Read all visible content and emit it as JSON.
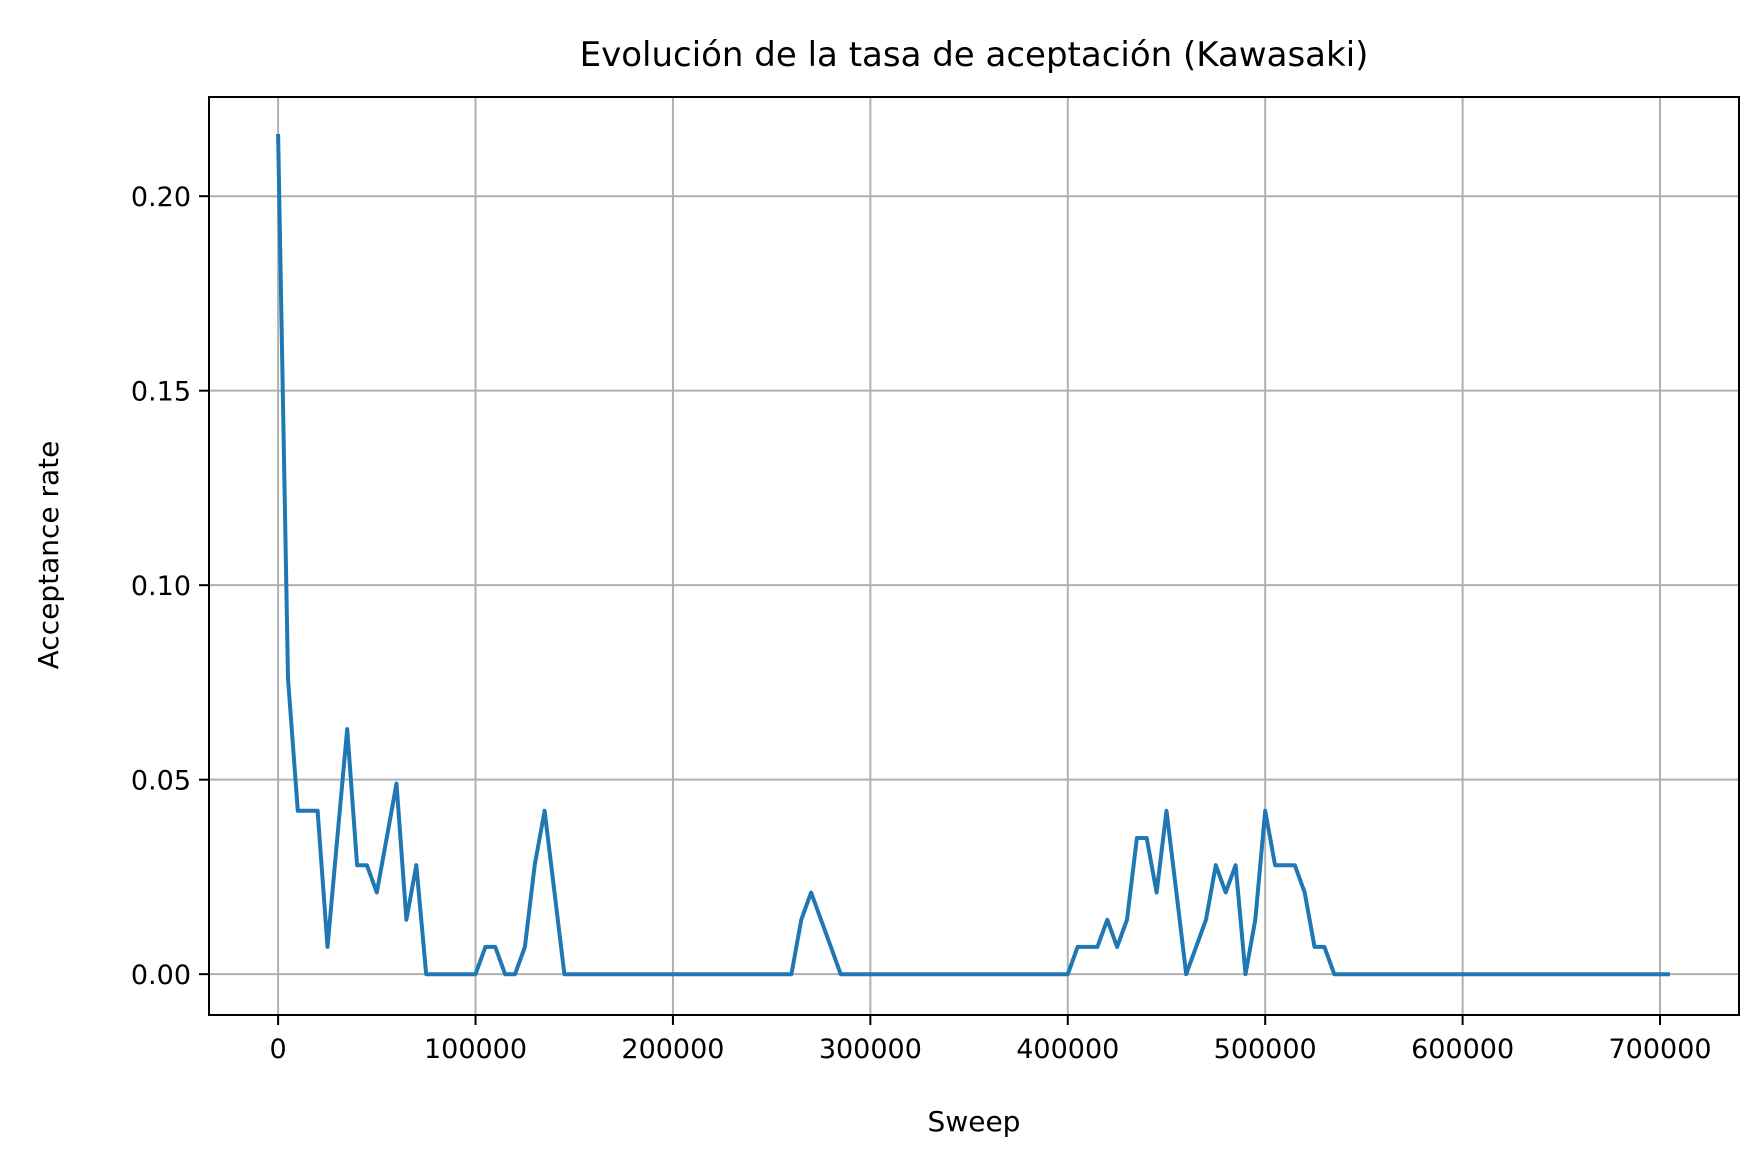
{
  "chart_data": {
    "type": "line",
    "title": "Evolución de la tasa de aceptación (Kawasaki)",
    "xlabel": "Sweep",
    "ylabel": "Acceptance rate",
    "xlim": [
      -35000,
      740000
    ],
    "ylim": [
      -0.0105,
      0.2255
    ],
    "xticks": [
      0,
      100000,
      200000,
      300000,
      400000,
      500000,
      600000,
      700000
    ],
    "xtick_labels": [
      "0",
      "100000",
      "200000",
      "300000",
      "400000",
      "500000",
      "600000",
      "700000"
    ],
    "yticks": [
      0.0,
      0.05,
      0.1,
      0.15,
      0.2
    ],
    "ytick_labels": [
      "0.00",
      "0.05",
      "0.10",
      "0.15",
      "0.20"
    ],
    "grid": true,
    "series": [
      {
        "color": "#1f77b4",
        "x": [
          0,
          5000,
          10000,
          15000,
          20000,
          25000,
          30000,
          35000,
          40000,
          45000,
          50000,
          55000,
          60000,
          65000,
          70000,
          75000,
          80000,
          85000,
          90000,
          95000,
          100000,
          105000,
          110000,
          115000,
          120000,
          125000,
          130000,
          135000,
          140000,
          145000,
          150000,
          260000,
          265000,
          270000,
          275000,
          280000,
          285000,
          290000,
          400000,
          405000,
          410000,
          415000,
          420000,
          425000,
          430000,
          435000,
          440000,
          445000,
          450000,
          455000,
          460000,
          465000,
          470000,
          475000,
          480000,
          485000,
          490000,
          495000,
          500000,
          505000,
          510000,
          515000,
          520000,
          525000,
          530000,
          535000,
          705000
        ],
        "y": [
          0.216,
          0.076,
          0.042,
          0.042,
          0.042,
          0.007,
          0.035,
          0.063,
          0.028,
          0.028,
          0.021,
          0.035,
          0.049,
          0.014,
          0.028,
          0.0,
          0.0,
          0.0,
          0.0,
          0.0,
          0.0,
          0.007,
          0.007,
          0.0,
          0.0,
          0.007,
          0.028,
          0.042,
          0.021,
          0.0,
          0.0,
          0.0,
          0.014,
          0.021,
          0.014,
          0.007,
          0.0,
          0.0,
          0.0,
          0.007,
          0.007,
          0.007,
          0.014,
          0.007,
          0.014,
          0.035,
          0.035,
          0.021,
          0.042,
          0.021,
          0.0,
          0.007,
          0.014,
          0.028,
          0.021,
          0.028,
          0.0,
          0.014,
          0.042,
          0.028,
          0.028,
          0.028,
          0.021,
          0.007,
          0.007,
          0.0,
          0.0
        ]
      }
    ]
  }
}
